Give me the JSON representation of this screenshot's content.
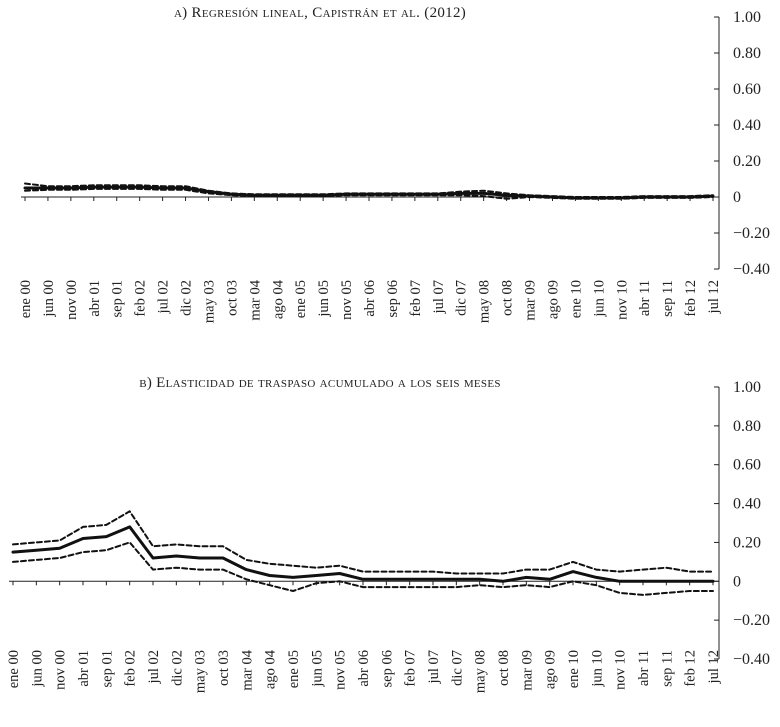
{
  "chart_data": [
    {
      "type": "line",
      "title": "a) Regresión lineal, Capistrán et al. (2012)",
      "ylim": [
        -0.4,
        1.0
      ],
      "yticks": [
        1.0,
        0.8,
        0.6,
        0.4,
        0.2,
        0,
        -0.2,
        -0.4
      ],
      "ytick_labels": [
        "1.00",
        "0.80",
        "0.60",
        "0.40",
        "0.20",
        "0",
        "−0.20",
        "−0.40"
      ],
      "xtick_labels": [
        "ene 00",
        "jun 00",
        "nov 00",
        "abr 01",
        "sep 01",
        "feb 02",
        "jul 02",
        "dic 02",
        "may 03",
        "oct 03",
        "mar 04",
        "ago 04",
        "ene 05",
        "jun 05",
        "nov 05",
        "abr 06",
        "sep 06",
        "feb 07",
        "jul 07",
        "dic 07",
        "may 08",
        "oct 08",
        "mar 09",
        "ago 09",
        "ene 10",
        "jun 10",
        "nov 10",
        "abr 11",
        "sep 11",
        "feb 12",
        "jul 12"
      ],
      "series": [
        {
          "style": "solid",
          "values": [
            0.05,
            0.05,
            0.05,
            0.055,
            0.055,
            0.055,
            0.05,
            0.05,
            0.03,
            0.015,
            0.01,
            0.01,
            0.01,
            0.01,
            0.015,
            0.015,
            0.015,
            0.015,
            0.015,
            0.02,
            0.02,
            0.01,
            0.005,
            0.0,
            -0.005,
            -0.005,
            -0.005,
            0.0,
            0.0,
            0.0,
            0.005
          ]
        },
        {
          "style": "dashed",
          "values": [
            0.075,
            0.06,
            0.06,
            0.065,
            0.065,
            0.065,
            0.06,
            0.06,
            0.035,
            0.02,
            0.015,
            0.015,
            0.015,
            0.015,
            0.02,
            0.02,
            0.02,
            0.02,
            0.02,
            0.03,
            0.035,
            0.02,
            0.01,
            0.005,
            0.0,
            0.0,
            0.0,
            0.005,
            0.005,
            0.005,
            0.01
          ]
        },
        {
          "style": "dashed",
          "values": [
            0.035,
            0.04,
            0.04,
            0.045,
            0.045,
            0.045,
            0.04,
            0.04,
            0.02,
            0.01,
            0.005,
            0.005,
            0.005,
            0.005,
            0.01,
            0.01,
            0.01,
            0.01,
            0.01,
            0.01,
            0.005,
            -0.01,
            0.0,
            -0.005,
            -0.01,
            -0.01,
            -0.01,
            -0.005,
            -0.005,
            -0.005,
            0.0
          ]
        }
      ]
    },
    {
      "type": "line",
      "title": "b) Elasticidad de traspaso acumulado a los seis meses",
      "ylim": [
        -0.4,
        1.0
      ],
      "yticks": [
        1.0,
        0.8,
        0.6,
        0.4,
        0.2,
        0,
        -0.2,
        -0.4
      ],
      "ytick_labels": [
        "1.00",
        "0.80",
        "0.60",
        "0.40",
        "0.20",
        "0",
        "−0.20",
        "−0.40"
      ],
      "xtick_labels": [
        "ene 00",
        "jun 00",
        "nov 00",
        "abr 01",
        "sep 01",
        "feb 02",
        "jul 02",
        "dic 02",
        "may 03",
        "oct 03",
        "mar 04",
        "ago 04",
        "ene 05",
        "jun 05",
        "nov 05",
        "abr 06",
        "sep 06",
        "feb 07",
        "jul 07",
        "dic 07",
        "may 08",
        "oct 08",
        "mar 09",
        "ago 09",
        "ene 10",
        "jun 10",
        "nov 10",
        "abr 11",
        "sep 11",
        "feb 12",
        "jul 12"
      ],
      "series": [
        {
          "style": "solid",
          "values": [
            0.15,
            0.16,
            0.17,
            0.22,
            0.23,
            0.28,
            0.12,
            0.13,
            0.12,
            0.12,
            0.06,
            0.03,
            0.02,
            0.03,
            0.04,
            0.01,
            0.01,
            0.01,
            0.01,
            0.01,
            0.01,
            0.0,
            0.02,
            0.01,
            0.05,
            0.02,
            0.0,
            0.0,
            0.0,
            0.0,
            0.0
          ]
        },
        {
          "style": "dashed",
          "values": [
            0.19,
            0.2,
            0.21,
            0.28,
            0.29,
            0.36,
            0.18,
            0.19,
            0.18,
            0.18,
            0.11,
            0.09,
            0.08,
            0.07,
            0.08,
            0.05,
            0.05,
            0.05,
            0.05,
            0.04,
            0.04,
            0.04,
            0.06,
            0.06,
            0.1,
            0.06,
            0.05,
            0.06,
            0.07,
            0.05,
            0.05
          ]
        },
        {
          "style": "dashed",
          "values": [
            0.1,
            0.11,
            0.12,
            0.15,
            0.16,
            0.2,
            0.06,
            0.07,
            0.06,
            0.06,
            0.01,
            -0.02,
            -0.05,
            -0.01,
            0.0,
            -0.03,
            -0.03,
            -0.03,
            -0.03,
            -0.03,
            -0.02,
            -0.03,
            -0.02,
            -0.03,
            0.0,
            -0.02,
            -0.06,
            -0.07,
            -0.06,
            -0.05,
            -0.05
          ]
        }
      ]
    }
  ]
}
